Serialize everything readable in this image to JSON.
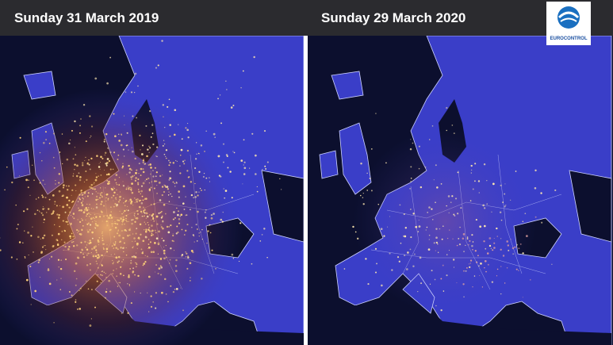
{
  "header": {
    "left_title": "Sunday 31 March 2019",
    "right_title": "Sunday 29 March 2020",
    "logo_text": "EUROCONTROL"
  }
}
